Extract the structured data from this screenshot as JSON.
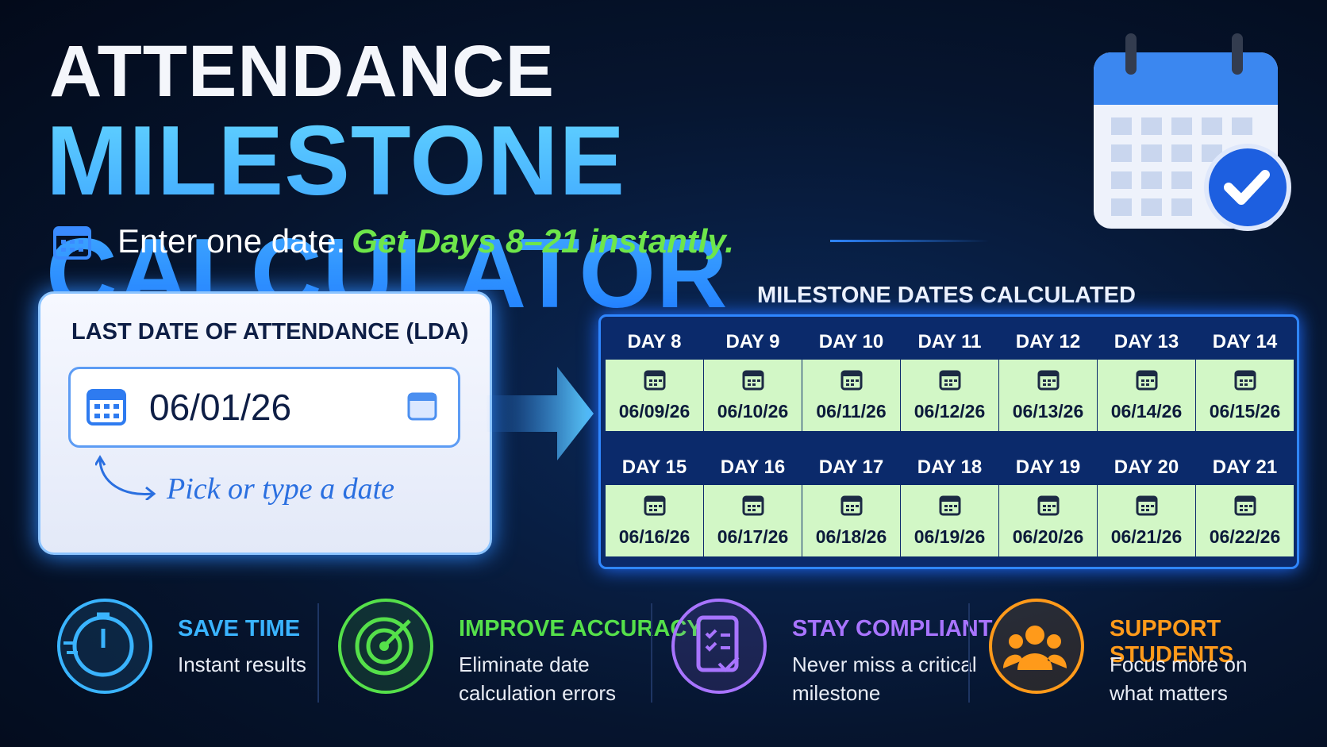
{
  "header": {
    "title_line1": "ATTENDANCE",
    "title_line2": "MILESTONE CALCULATOR",
    "tagline_plain": "Enter one date.",
    "tagline_highlight": "Get Days 8–21 instantly."
  },
  "input_card": {
    "label": "LAST DATE OF ATTENDANCE (LDA)",
    "value": "06/01/26",
    "hint": "Pick or type a date"
  },
  "results": {
    "title": "MILESTONE DATES CALCULATED",
    "rows": [
      [
        {
          "day": "DAY 8",
          "date": "06/09/26"
        },
        {
          "day": "DAY 9",
          "date": "06/10/26"
        },
        {
          "day": "DAY 10",
          "date": "06/11/26"
        },
        {
          "day": "DAY 11",
          "date": "06/12/26"
        },
        {
          "day": "DAY 12",
          "date": "06/13/26"
        },
        {
          "day": "DAY 13",
          "date": "06/14/26"
        },
        {
          "day": "DAY 14",
          "date": "06/15/26"
        }
      ],
      [
        {
          "day": "DAY 15",
          "date": "06/16/26"
        },
        {
          "day": "DAY 16",
          "date": "06/17/26"
        },
        {
          "day": "DAY 17",
          "date": "06/18/26"
        },
        {
          "day": "DAY 18",
          "date": "06/19/26"
        },
        {
          "day": "DAY 19",
          "date": "06/20/26"
        },
        {
          "day": "DAY 20",
          "date": "06/21/26"
        },
        {
          "day": "DAY 21",
          "date": "06/22/26"
        }
      ]
    ]
  },
  "features": [
    {
      "title": "SAVE TIME",
      "lines": [
        "Instant results"
      ],
      "color": "#3ab4ff"
    },
    {
      "title": "IMPROVE ACCURACY",
      "lines": [
        "Eliminate date",
        "calculation errors"
      ],
      "color": "#55e04a"
    },
    {
      "title": "STAY COMPLIANT",
      "lines": [
        "Never miss a critical",
        "milestone"
      ],
      "color": "#a874ff"
    },
    {
      "title": "SUPPORT STUDENTS",
      "lines": [
        "Focus more on",
        "what matters"
      ],
      "color": "#ff9a1a"
    }
  ]
}
